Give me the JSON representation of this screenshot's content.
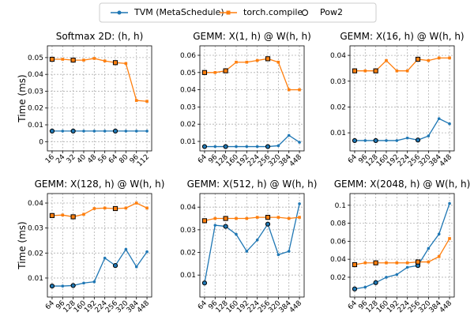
{
  "legend": [
    {
      "name": "TVM (MetaSchedule)",
      "color": "#1f77b4",
      "marker": "circle"
    },
    {
      "name": "torch.compile",
      "color": "#ff7f0e",
      "marker": "square"
    },
    {
      "name": "Pow2",
      "color": "#000000",
      "marker": "hollow-circle"
    }
  ],
  "chart_data": [
    {
      "type": "line",
      "title": "Softmax 2D: (h, h)",
      "ylabel": "Time (ms)",
      "categories": [
        "16",
        "24",
        "32",
        "40",
        "48",
        "56",
        "64",
        "80",
        "96",
        "112"
      ],
      "series": [
        {
          "values": [
            0.0063,
            0.0063,
            0.0063,
            0.0063,
            0.0063,
            0.0063,
            0.0063,
            0.0063,
            0.0063,
            0.0063
          ]
        },
        {
          "values": [
            0.049,
            0.049,
            0.0485,
            0.0485,
            0.0495,
            0.048,
            0.047,
            0.0465,
            0.0245,
            0.024
          ]
        }
      ],
      "ylim": [
        -0.0055,
        0.057
      ],
      "yticks": [
        0,
        0.01,
        0.02,
        0.03,
        0.04,
        0.05
      ],
      "grid": true
    },
    {
      "type": "line",
      "title": "GEMM: X(1, h) @ W(h, h)",
      "categories": [
        "64",
        "96",
        "128",
        "160",
        "192",
        "224",
        "256",
        "320",
        "384",
        "448"
      ],
      "series": [
        {
          "values": [
            0.007,
            0.007,
            0.007,
            0.007,
            0.007,
            0.007,
            0.007,
            0.0075,
            0.0135,
            0.0095
          ]
        },
        {
          "values": [
            0.05,
            0.05,
            0.051,
            0.056,
            0.056,
            0.057,
            0.058,
            0.056,
            0.04,
            0.04
          ]
        }
      ],
      "ylim": [
        0.0045,
        0.0655
      ],
      "yticks": [
        0.01,
        0.02,
        0.03,
        0.04,
        0.05,
        0.06
      ],
      "grid": true
    },
    {
      "type": "line",
      "title": "GEMM: X(16, h) @ W(h, h)",
      "categories": [
        "64",
        "96",
        "128",
        "160",
        "192",
        "224",
        "256",
        "320",
        "384",
        "448"
      ],
      "series": [
        {
          "values": [
            0.007,
            0.007,
            0.007,
            0.007,
            0.007,
            0.008,
            0.0072,
            0.0088,
            0.0155,
            0.0135
          ]
        },
        {
          "values": [
            0.034,
            0.034,
            0.034,
            0.038,
            0.034,
            0.034,
            0.0385,
            0.038,
            0.039,
            0.039
          ]
        }
      ],
      "ylim": [
        0.003,
        0.0437
      ],
      "yticks": [
        0.01,
        0.02,
        0.03,
        0.04
      ],
      "grid": true
    },
    {
      "type": "line",
      "title": "GEMM: X(128, h) @ W(h, h)",
      "ylabel": "Time (ms)",
      "categories": [
        "64",
        "96",
        "128",
        "160",
        "192",
        "224",
        "256",
        "320",
        "384",
        "448"
      ],
      "series": [
        {
          "values": [
            0.0068,
            0.0068,
            0.007,
            0.008,
            0.0085,
            0.018,
            0.015,
            0.0215,
            0.0145,
            0.0205
          ]
        },
        {
          "values": [
            0.035,
            0.0352,
            0.0345,
            0.0355,
            0.0378,
            0.038,
            0.0378,
            0.038,
            0.04,
            0.038
          ]
        }
      ],
      "ylim": [
        0.0024,
        0.0438
      ],
      "yticks": [
        0.01,
        0.02,
        0.03,
        0.04
      ],
      "grid": true
    },
    {
      "type": "line",
      "title": "GEMM: X(512, h) @ W(h, h)",
      "categories": [
        "64",
        "96",
        "128",
        "160",
        "192",
        "224",
        "256",
        "320",
        "384",
        "448"
      ],
      "series": [
        {
          "values": [
            0.0065,
            0.032,
            0.0315,
            0.028,
            0.0205,
            0.0255,
            0.0325,
            0.019,
            0.0205,
            0.0415
          ]
        },
        {
          "values": [
            0.034,
            0.035,
            0.035,
            0.035,
            0.035,
            0.0355,
            0.0355,
            0.0355,
            0.035,
            0.0355
          ]
        }
      ],
      "ylim": [
        0.0003,
        0.046
      ],
      "yticks": [
        0.01,
        0.02,
        0.03,
        0.04
      ],
      "grid": true
    },
    {
      "type": "line",
      "title": "GEMM: X(2048, h) @ W(h, h)",
      "categories": [
        "64",
        "96",
        "128",
        "160",
        "192",
        "224",
        "256",
        "320",
        "384",
        "448"
      ],
      "series": [
        {
          "values": [
            0.007,
            0.009,
            0.014,
            0.02,
            0.023,
            0.031,
            0.033,
            0.052,
            0.068,
            0.102
          ]
        },
        {
          "values": [
            0.034,
            0.036,
            0.036,
            0.036,
            0.036,
            0.036,
            0.037,
            0.037,
            0.043,
            0.063
          ]
        }
      ],
      "ylim": [
        -0.002,
        0.113
      ],
      "yticks": [
        0.02,
        0.04,
        0.06,
        0.08,
        0.1
      ],
      "grid": true
    }
  ]
}
